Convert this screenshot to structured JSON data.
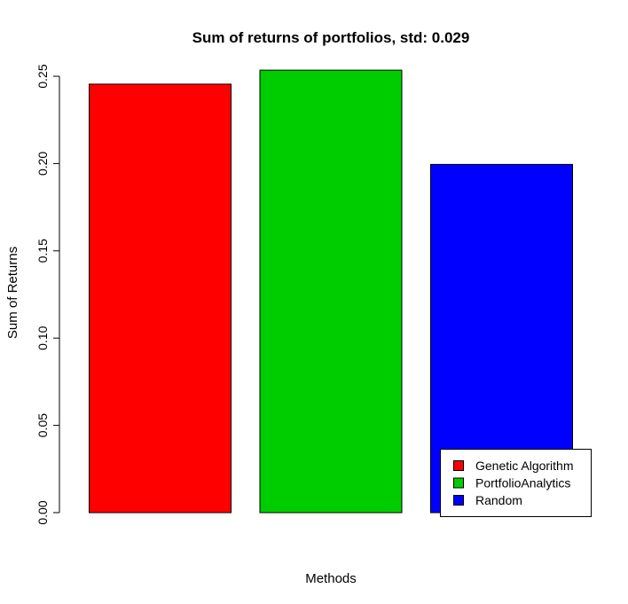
{
  "chart_data": {
    "type": "bar",
    "title": "Sum of returns of portfolios, std: 0.029",
    "xlabel": "Methods",
    "ylabel": "Sum of Returns",
    "categories": [
      "Genetic Algorithm",
      "PortfolioAnalytics",
      "Random"
    ],
    "values": [
      0.2455,
      0.2535,
      0.1995
    ],
    "colors": [
      "#ff0000",
      "#00cd00",
      "#0000ff"
    ],
    "ylim": [
      0,
      0.25
    ],
    "yticks": [
      "0.00",
      "0.05",
      "0.10",
      "0.15",
      "0.20",
      "0.25"
    ],
    "grid": false,
    "legend": {
      "position": "bottom-right",
      "entries": [
        "Genetic Algorithm",
        "PortfolioAnalytics",
        "Random"
      ]
    }
  }
}
